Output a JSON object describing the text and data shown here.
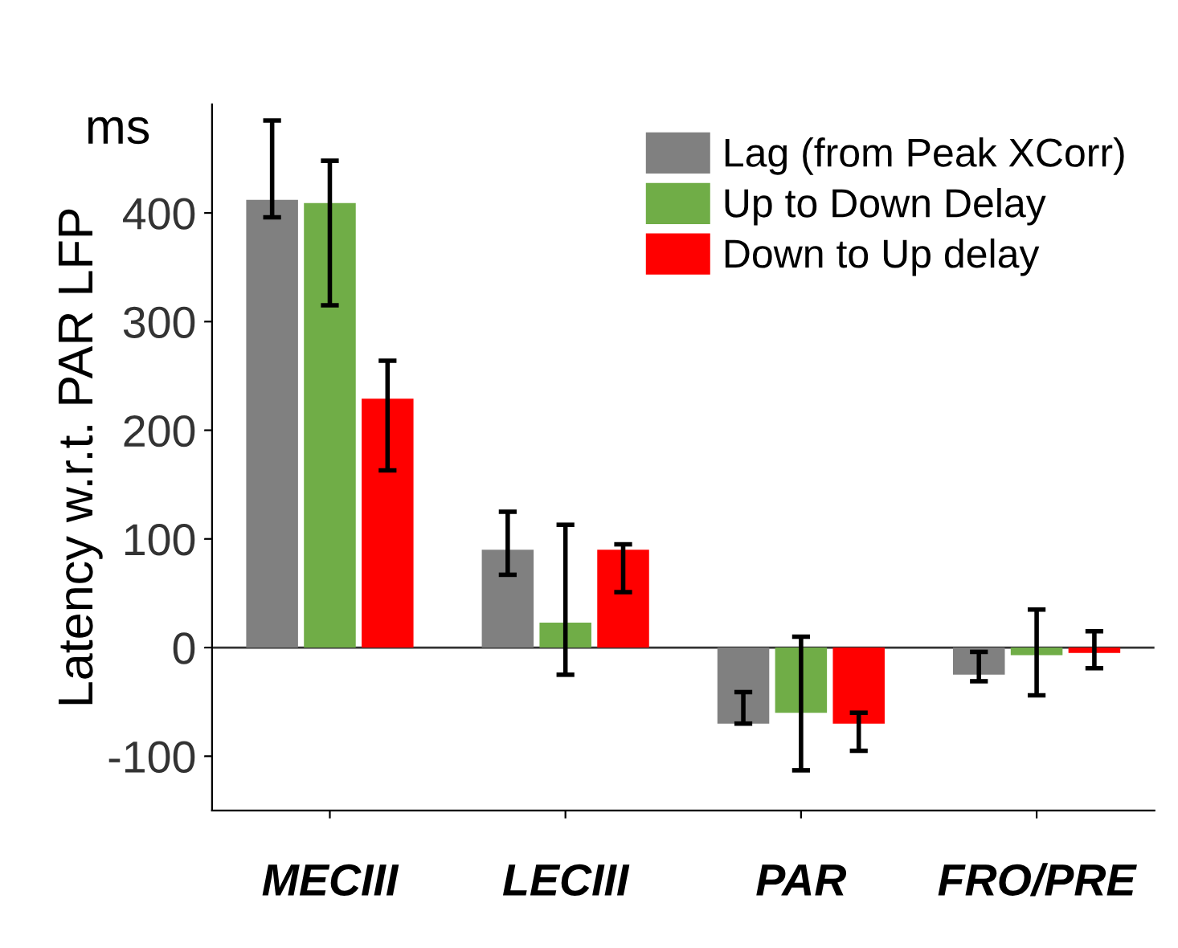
{
  "chart_data": {
    "type": "bar",
    "ylabel": "Latency w.r.t. PAR LFP",
    "annotations": [
      "ms"
    ],
    "categories": [
      "MECIII",
      "LECIII",
      "PAR",
      "FRO/PRE"
    ],
    "series": [
      {
        "name": "Lag (from Peak XCorr)",
        "color": "#808080",
        "values": [
          412,
          90,
          -70,
          -25
        ],
        "errors": [
          [
            396,
            485
          ],
          [
            67,
            125
          ],
          [
            -70,
            -41
          ],
          [
            -31,
            -4
          ]
        ]
      },
      {
        "name": "Up to Down Delay",
        "color": "#70ad47",
        "values": [
          409,
          23,
          -60,
          -7
        ],
        "errors": [
          [
            315,
            448
          ],
          [
            -25,
            113
          ],
          [
            -113,
            10
          ],
          [
            -44,
            35
          ]
        ]
      },
      {
        "name": "Down to Up delay",
        "color": "#ff0000",
        "values": [
          229,
          90,
          -70,
          -5
        ],
        "errors": [
          [
            163,
            264
          ],
          [
            51,
            95
          ],
          [
            -95,
            -60
          ],
          [
            -19,
            15
          ]
        ]
      }
    ],
    "ylim": [
      -150,
      500
    ],
    "yticks": [
      -100,
      0,
      100,
      200,
      300,
      400
    ],
    "ref_lines": [
      {
        "axis": "y",
        "value": 0,
        "color": "#333333"
      }
    ],
    "legend": "top right"
  }
}
